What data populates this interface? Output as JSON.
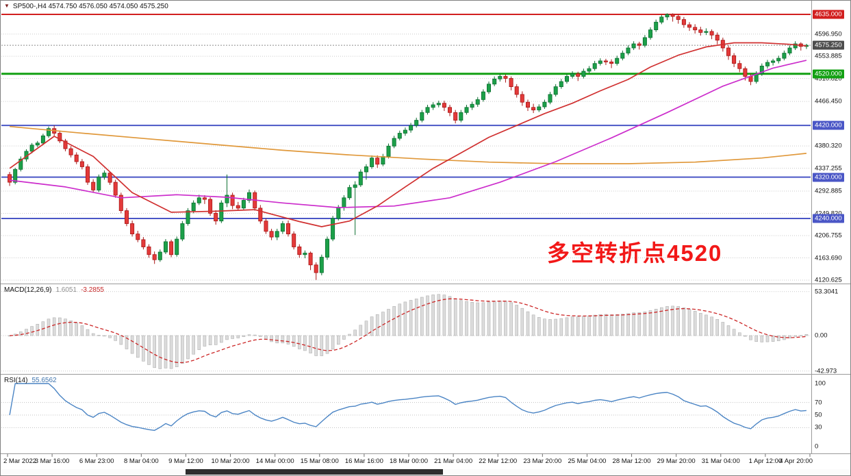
{
  "chart_data": {
    "type": "candlestick",
    "symbol": "SP500-",
    "timeframe": "H4",
    "header": {
      "triangle": "▼",
      "text": "SP500-,H4 4574.750 4576.050 4574.050 4575.250"
    },
    "ohlc": {
      "open": 4574.75,
      "high": 4576.05,
      "low": 4574.05,
      "close": 4575.25
    },
    "ylim": [
      4112,
      4648
    ],
    "price_ticks": [
      "4596.950",
      "4553.885",
      "4510.820",
      "4466.450",
      "4380.320",
      "4337.255",
      "4292.885",
      "4249.820",
      "4206.755",
      "4163.690",
      "4120.625"
    ],
    "hlines": [
      {
        "price": 4635.0,
        "label": "4635.000",
        "color": "#d21f1f",
        "width": 2
      },
      {
        "price": 4520.0,
        "label": "4520.000",
        "color": "#12a012",
        "width": 3
      },
      {
        "price": 4420.0,
        "label": "4420.000",
        "color": "#4a56c6",
        "width": 2
      },
      {
        "price": 4320.0,
        "label": "4320.000",
        "color": "#4a56c6",
        "width": 2
      },
      {
        "price": 4240.0,
        "label": "4240.000",
        "color": "#4a56c6",
        "width": 2
      }
    ],
    "current_price": {
      "value": 4575.25,
      "label": "4575.250",
      "bg": "#4d4d4d"
    },
    "up_color": "#1ca049",
    "up_border": "#0b6e2f",
    "down_color": "#e33a3a",
    "down_border": "#a81515",
    "candles": [
      [
        4325,
        4330,
        4303,
        4310
      ],
      [
        4310,
        4338,
        4306,
        4335
      ],
      [
        4335,
        4360,
        4331,
        4355
      ],
      [
        4355,
        4374,
        4350,
        4370
      ],
      [
        4370,
        4386,
        4366,
        4382
      ],
      [
        4382,
        4390,
        4378,
        4386
      ],
      [
        4386,
        4404,
        4382,
        4400
      ],
      [
        4400,
        4418,
        4396,
        4414
      ],
      [
        4414,
        4420,
        4400,
        4405
      ],
      [
        4405,
        4410,
        4386,
        4390
      ],
      [
        4390,
        4394,
        4370,
        4375
      ],
      [
        4375,
        4380,
        4358,
        4363
      ],
      [
        4363,
        4368,
        4345,
        4350
      ],
      [
        4350,
        4355,
        4335,
        4340
      ],
      [
        4340,
        4345,
        4305,
        4310
      ],
      [
        4310,
        4316,
        4290,
        4295
      ],
      [
        4295,
        4325,
        4291,
        4320
      ],
      [
        4320,
        4333,
        4315,
        4328
      ],
      [
        4328,
        4331,
        4305,
        4310
      ],
      [
        4310,
        4315,
        4280,
        4285
      ],
      [
        4285,
        4290,
        4250,
        4255
      ],
      [
        4255,
        4260,
        4225,
        4230
      ],
      [
        4230,
        4236,
        4205,
        4210
      ],
      [
        4210,
        4216,
        4194,
        4199
      ],
      [
        4199,
        4204,
        4180,
        4185
      ],
      [
        4185,
        4190,
        4164,
        4170
      ],
      [
        4170,
        4176,
        4152,
        4160
      ],
      [
        4160,
        4180,
        4156,
        4175
      ],
      [
        4175,
        4200,
        4171,
        4195
      ],
      [
        4195,
        4199,
        4165,
        4170
      ],
      [
        4170,
        4205,
        4166,
        4200
      ],
      [
        4200,
        4235,
        4196,
        4230
      ],
      [
        4230,
        4260,
        4226,
        4255
      ],
      [
        4255,
        4275,
        4250,
        4270
      ],
      [
        4270,
        4286,
        4266,
        4280
      ],
      [
        4280,
        4285,
        4268,
        4277
      ],
      [
        4277,
        4281,
        4245,
        4250
      ],
      [
        4250,
        4256,
        4228,
        4235
      ],
      [
        4235,
        4275,
        4231,
        4270
      ],
      [
        4270,
        4325,
        4262,
        4285
      ],
      [
        4285,
        4290,
        4258,
        4265
      ],
      [
        4265,
        4272,
        4255,
        4260
      ],
      [
        4260,
        4280,
        4256,
        4275
      ],
      [
        4275,
        4296,
        4270,
        4290
      ],
      [
        4290,
        4294,
        4255,
        4260
      ],
      [
        4260,
        4266,
        4230,
        4235
      ],
      [
        4235,
        4240,
        4210,
        4215
      ],
      [
        4215,
        4220,
        4198,
        4204
      ],
      [
        4204,
        4220,
        4198,
        4215
      ],
      [
        4215,
        4235,
        4210,
        4230
      ],
      [
        4230,
        4236,
        4205,
        4210
      ],
      [
        4210,
        4215,
        4180,
        4185
      ],
      [
        4185,
        4190,
        4164,
        4170
      ],
      [
        4170,
        4178,
        4163,
        4173
      ],
      [
        4173,
        4176,
        4140,
        4150
      ],
      [
        4150,
        4155,
        4121,
        4135
      ],
      [
        4135,
        4170,
        4130,
        4165
      ],
      [
        4165,
        4205,
        4160,
        4200
      ],
      [
        4200,
        4245,
        4196,
        4240
      ],
      [
        4240,
        4266,
        4236,
        4262
      ],
      [
        4262,
        4285,
        4255,
        4280
      ],
      [
        4280,
        4305,
        4276,
        4300
      ],
      [
        4300,
        4312,
        4208,
        4305
      ],
      [
        4305,
        4335,
        4301,
        4330
      ],
      [
        4330,
        4345,
        4315,
        4340
      ],
      [
        4340,
        4362,
        4336,
        4357
      ],
      [
        4357,
        4362,
        4338,
        4345
      ],
      [
        4345,
        4365,
        4341,
        4360
      ],
      [
        4360,
        4385,
        4356,
        4380
      ],
      [
        4380,
        4400,
        4376,
        4395
      ],
      [
        4395,
        4410,
        4391,
        4405
      ],
      [
        4405,
        4416,
        4400,
        4411
      ],
      [
        4411,
        4425,
        4406,
        4420
      ],
      [
        4420,
        4435,
        4416,
        4430
      ],
      [
        4430,
        4450,
        4426,
        4445
      ],
      [
        4445,
        4460,
        4441,
        4455
      ],
      [
        4455,
        4465,
        4450,
        4460
      ],
      [
        4460,
        4468,
        4455,
        4463
      ],
      [
        4463,
        4468,
        4448,
        4455
      ],
      [
        4455,
        4460,
        4438,
        4445
      ],
      [
        4445,
        4450,
        4424,
        4430
      ],
      [
        4430,
        4450,
        4426,
        4445
      ],
      [
        4445,
        4460,
        4441,
        4455
      ],
      [
        4455,
        4466,
        4450,
        4461
      ],
      [
        4461,
        4475,
        4456,
        4470
      ],
      [
        4470,
        4490,
        4466,
        4485
      ],
      [
        4485,
        4505,
        4481,
        4500
      ],
      [
        4500,
        4515,
        4496,
        4510
      ],
      [
        4510,
        4520,
        4505,
        4515
      ],
      [
        4515,
        4519,
        4503,
        4511
      ],
      [
        4511,
        4515,
        4488,
        4495
      ],
      [
        4495,
        4500,
        4474,
        4480
      ],
      [
        4480,
        4486,
        4458,
        4465
      ],
      [
        4465,
        4470,
        4448,
        4455
      ],
      [
        4455,
        4462,
        4444,
        4450
      ],
      [
        4450,
        4461,
        4446,
        4456
      ],
      [
        4456,
        4470,
        4452,
        4465
      ],
      [
        4465,
        4485,
        4461,
        4480
      ],
      [
        4480,
        4500,
        4476,
        4495
      ],
      [
        4495,
        4510,
        4491,
        4505
      ],
      [
        4505,
        4520,
        4501,
        4515
      ],
      [
        4515,
        4525,
        4511,
        4520
      ],
      [
        4520,
        4524,
        4506,
        4515
      ],
      [
        4515,
        4530,
        4511,
        4525
      ],
      [
        4525,
        4535,
        4521,
        4530
      ],
      [
        4530,
        4545,
        4526,
        4540
      ],
      [
        4540,
        4550,
        4536,
        4545
      ],
      [
        4545,
        4549,
        4537,
        4543
      ],
      [
        4543,
        4548,
        4531,
        4540
      ],
      [
        4540,
        4555,
        4536,
        4550
      ],
      [
        4550,
        4565,
        4546,
        4560
      ],
      [
        4560,
        4575,
        4556,
        4570
      ],
      [
        4570,
        4583,
        4566,
        4578
      ],
      [
        4578,
        4582,
        4567,
        4575
      ],
      [
        4575,
        4595,
        4571,
        4590
      ],
      [
        4590,
        4610,
        4586,
        4605
      ],
      [
        4605,
        4625,
        4601,
        4620
      ],
      [
        4620,
        4634,
        4616,
        4630
      ],
      [
        4630,
        4637,
        4624,
        4635
      ],
      [
        4635,
        4637,
        4621,
        4631
      ],
      [
        4631,
        4634,
        4617,
        4625
      ],
      [
        4625,
        4630,
        4609,
        4615
      ],
      [
        4615,
        4620,
        4603,
        4610
      ],
      [
        4610,
        4616,
        4598,
        4605
      ],
      [
        4605,
        4611,
        4594,
        4600
      ],
      [
        4600,
        4608,
        4595,
        4602
      ],
      [
        4602,
        4606,
        4587,
        4595
      ],
      [
        4595,
        4600,
        4577,
        4585
      ],
      [
        4585,
        4590,
        4563,
        4570
      ],
      [
        4570,
        4575,
        4547,
        4555
      ],
      [
        4555,
        4560,
        4533,
        4540
      ],
      [
        4540,
        4546,
        4523,
        4530
      ],
      [
        4530,
        4534,
        4507,
        4515
      ],
      [
        4515,
        4520,
        4498,
        4505
      ],
      [
        4505,
        4525,
        4501,
        4520
      ],
      [
        4520,
        4540,
        4516,
        4535
      ],
      [
        4535,
        4547,
        4530,
        4542
      ],
      [
        4542,
        4549,
        4536,
        4545
      ],
      [
        4545,
        4555,
        4540,
        4550
      ],
      [
        4550,
        4565,
        4546,
        4560
      ],
      [
        4560,
        4575,
        4556,
        4570
      ],
      [
        4570,
        4583,
        4566,
        4578
      ],
      [
        4578,
        4581,
        4565,
        4573
      ],
      [
        4573,
        4578,
        4568,
        4575.25
      ]
    ],
    "moving_averages": [
      {
        "name": "ma-slow-orange",
        "color": "#e0983a",
        "points": [
          [
            0,
            4418
          ],
          [
            12,
            4406
          ],
          [
            25,
            4394
          ],
          [
            37,
            4383
          ],
          [
            49,
            4372
          ],
          [
            61,
            4363
          ],
          [
            74,
            4355
          ],
          [
            86,
            4349
          ],
          [
            98,
            4346
          ],
          [
            111,
            4346
          ],
          [
            123,
            4349
          ],
          [
            135,
            4357
          ],
          [
            143,
            4366
          ]
        ]
      },
      {
        "name": "ma-mid-magenta",
        "color": "#cc2dcc",
        "points": [
          [
            0,
            4314
          ],
          [
            10,
            4301
          ],
          [
            20,
            4280
          ],
          [
            30,
            4286
          ],
          [
            39,
            4281
          ],
          [
            49,
            4270
          ],
          [
            59,
            4261
          ],
          [
            69,
            4264
          ],
          [
            79,
            4280
          ],
          [
            88,
            4310
          ],
          [
            98,
            4350
          ],
          [
            108,
            4396
          ],
          [
            118,
            4445
          ],
          [
            128,
            4496
          ],
          [
            137,
            4531
          ],
          [
            143,
            4546
          ]
        ]
      },
      {
        "name": "ma-fast-red",
        "color": "#d03030",
        "points": [
          [
            0,
            4337
          ],
          [
            8,
            4399
          ],
          [
            15,
            4360
          ],
          [
            22,
            4290
          ],
          [
            29,
            4252
          ],
          [
            37,
            4254
          ],
          [
            44,
            4257
          ],
          [
            52,
            4234
          ],
          [
            56,
            4224
          ],
          [
            61,
            4235
          ],
          [
            66,
            4264
          ],
          [
            71,
            4301
          ],
          [
            76,
            4337
          ],
          [
            81,
            4367
          ],
          [
            86,
            4397
          ],
          [
            91,
            4420
          ],
          [
            96,
            4443
          ],
          [
            101,
            4463
          ],
          [
            106,
            4487
          ],
          [
            111,
            4509
          ],
          [
            115,
            4533
          ],
          [
            120,
            4556
          ],
          [
            125,
            4572
          ],
          [
            130,
            4580
          ],
          [
            135,
            4580
          ],
          [
            140,
            4577
          ],
          [
            143,
            4574
          ]
        ]
      }
    ],
    "annotation": {
      "text": "多空转折点4520",
      "color": "#f21818"
    },
    "x_labels": [
      "2 Mar 2022",
      "3 Mar 16:00",
      "6 Mar 23:00",
      "8 Mar 04:00",
      "9 Mar 12:00",
      "10 Mar 20:00",
      "14 Mar 00:00",
      "15 Mar 08:00",
      "16 Mar 16:00",
      "18 Mar 00:00",
      "21 Mar 04:00",
      "22 Mar 12:00",
      "23 Mar 20:00",
      "25 Mar 04:00",
      "28 Mar 12:00",
      "29 Mar 20:00",
      "31 Mar 04:00",
      "1 Apr 12:00",
      "4 Apr 20:00"
    ],
    "macd": {
      "label": "MACD(12,26,9)",
      "value_main": "1.6051",
      "value_signal": "-3.2855",
      "fast": 12,
      "slow": 26,
      "signal": 9,
      "scale": [
        "53.3041",
        "0.00",
        "-42.973"
      ],
      "scale_values": [
        53.3041,
        0,
        -42.973
      ],
      "hist_color": "#dcdcdc",
      "hist_border": "#b0b0b0",
      "signal_color": "#cc2626"
    },
    "rsi": {
      "label": "RSI(14)",
      "value": "55.6562",
      "period": 14,
      "scale": [
        "100",
        "70",
        "50",
        "30",
        "0"
      ],
      "scale_values": [
        100,
        70,
        50,
        30,
        0
      ],
      "levels": [
        70,
        50,
        30
      ],
      "color": "#4a84c4"
    }
  }
}
